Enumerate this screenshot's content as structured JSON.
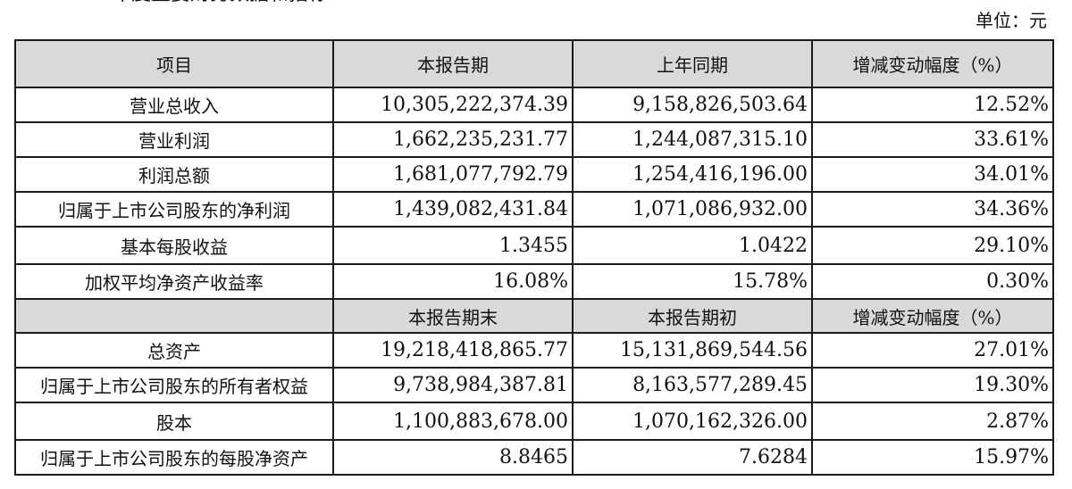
{
  "page": {
    "clipped_title": "年度主要财务数据和指标",
    "unit_label": "单位：元"
  },
  "table": {
    "header": [
      "项目",
      "本报告期",
      "上年同期",
      "增减变动幅度（%）"
    ],
    "rows_1": [
      [
        "营业总收入",
        "10,305,222,374.39",
        "9,158,826,503.64",
        "12.52%"
      ],
      [
        "营业利润",
        "1,662,235,231.77",
        "1,244,087,315.10",
        "33.61%"
      ],
      [
        "利润总额",
        "1,681,077,792.79",
        "1,254,416,196.00",
        "34.01%"
      ],
      [
        "归属于上市公司股东的净利润",
        "1,439,082,431.84",
        "1,071,086,932.00",
        "34.36%"
      ],
      [
        "基本每股收益",
        "1.3455",
        "1.0422",
        "29.10%"
      ],
      [
        "加权平均净资产收益率",
        "16.08%",
        "15.78%",
        "0.30%"
      ]
    ],
    "subheader": [
      "",
      "本报告期末",
      "本报告期初",
      "增减变动幅度（%）"
    ],
    "rows_2": [
      [
        "总资产",
        "19,218,418,865.77",
        "15,131,869,544.56",
        "27.01%"
      ],
      [
        "归属于上市公司股东的所有者权益",
        "9,738,984,387.81",
        "8,163,577,289.45",
        "19.30%"
      ],
      [
        "股本",
        "1,100,883,678.00",
        "1,070,162,326.00",
        "2.87%"
      ],
      [
        "归属于上市公司股东的每股净资产",
        "8.8465",
        "7.6284",
        "15.97%"
      ]
    ]
  }
}
